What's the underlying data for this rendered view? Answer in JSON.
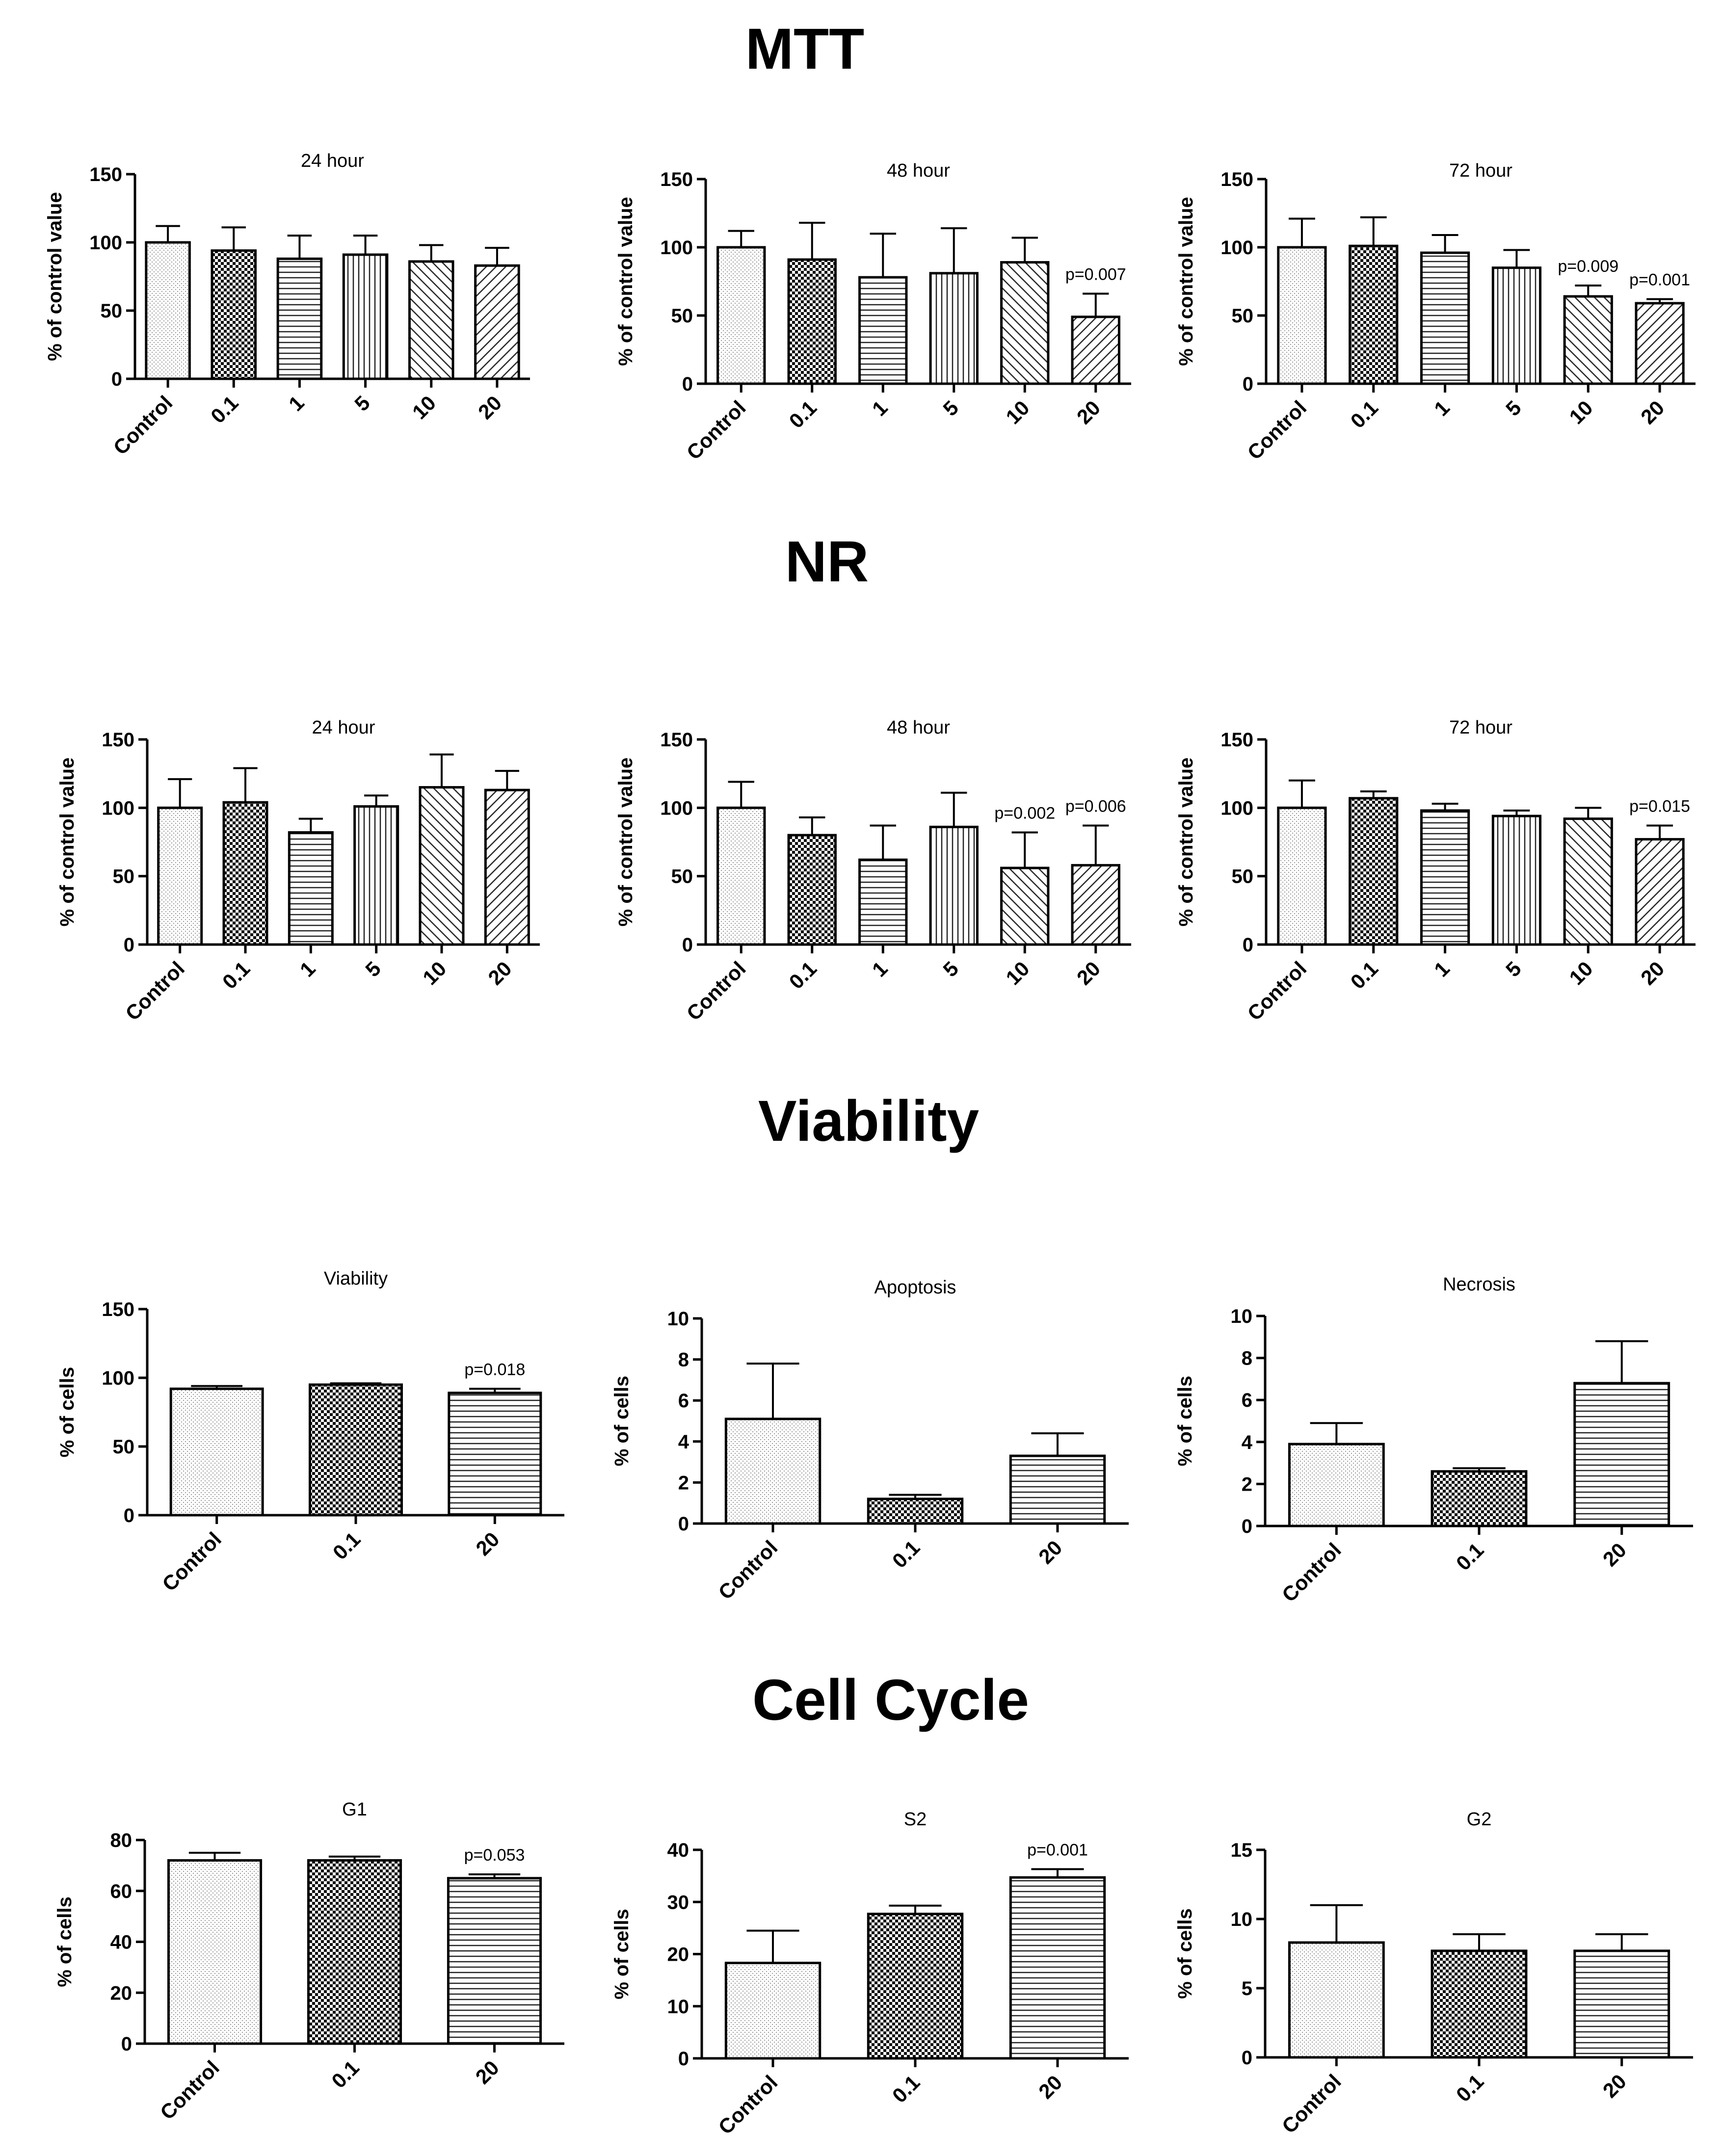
{
  "section_titles": {
    "mtt": "MTT",
    "nr": "NR",
    "viability": "Viability",
    "cell_cycle": "Cell Cycle"
  },
  "chart_data": [
    {
      "id": "mtt-24",
      "type": "bar",
      "title": "24 hour",
      "ylabel": "% of control value",
      "ylim": [
        0,
        150
      ],
      "yticks": [
        0,
        50,
        100,
        150
      ],
      "categories": [
        "Control",
        "0.1",
        "1",
        "5",
        "10",
        "20"
      ],
      "values": [
        100,
        94,
        88,
        91,
        86,
        83
      ],
      "errors": [
        12,
        17,
        17,
        14,
        12,
        13
      ],
      "patterns": [
        "dots",
        "checker",
        "hlines",
        "vlines",
        "diag",
        "diag2"
      ],
      "annotations": [
        "",
        "",
        "",
        "",
        "",
        ""
      ]
    },
    {
      "id": "mtt-48",
      "type": "bar",
      "title": "48 hour",
      "ylabel": "% of control value",
      "ylim": [
        0,
        150
      ],
      "yticks": [
        0,
        50,
        100,
        150
      ],
      "categories": [
        "Control",
        "0.1",
        "1",
        "5",
        "10",
        "20"
      ],
      "values": [
        100,
        91,
        78,
        81,
        89,
        49
      ],
      "errors": [
        12,
        27,
        32,
        33,
        18,
        17
      ],
      "patterns": [
        "dots",
        "checker",
        "hlines",
        "vlines",
        "diag",
        "diag2"
      ],
      "annotations": [
        "",
        "",
        "",
        "",
        "",
        "p=0.007"
      ]
    },
    {
      "id": "mtt-72",
      "type": "bar",
      "title": "72 hour",
      "ylabel": "% of control value",
      "ylim": [
        0,
        150
      ],
      "yticks": [
        0,
        50,
        100,
        150
      ],
      "categories": [
        "Control",
        "0.1",
        "1",
        "5",
        "10",
        "20"
      ],
      "values": [
        100,
        101,
        96,
        85,
        64,
        59
      ],
      "errors": [
        21,
        21,
        13,
        13,
        8,
        3
      ],
      "patterns": [
        "dots",
        "checker",
        "hlines",
        "vlines",
        "diag",
        "diag2"
      ],
      "annotations": [
        "",
        "",
        "",
        "",
        "p=0.009",
        "p=0.001"
      ]
    },
    {
      "id": "nr-24",
      "type": "bar",
      "title": "24 hour",
      "ylabel": "% of control value",
      "ylim": [
        0,
        150
      ],
      "yticks": [
        0,
        50,
        100,
        150
      ],
      "categories": [
        "Control",
        "0.1",
        "1",
        "5",
        "10",
        "20"
      ],
      "values": [
        100,
        104,
        82,
        101,
        115,
        113
      ],
      "errors": [
        21,
        25,
        10,
        8,
        24,
        14
      ],
      "patterns": [
        "dots",
        "checker",
        "hlines",
        "vlines",
        "diag",
        "diag2"
      ],
      "annotations": [
        "",
        "",
        "",
        "",
        "",
        ""
      ]
    },
    {
      "id": "nr-48",
      "type": "bar",
      "title": "48 hour",
      "ylabel": "% of control value",
      "ylim": [
        0,
        150
      ],
      "yticks": [
        0,
        50,
        100,
        150
      ],
      "categories": [
        "Control",
        "0.1",
        "1",
        "5",
        "10",
        "20"
      ],
      "values": [
        100,
        80,
        62,
        86,
        56,
        58
      ],
      "errors": [
        19,
        13,
        25,
        25,
        26,
        29
      ],
      "patterns": [
        "dots",
        "checker",
        "hlines",
        "vlines",
        "diag",
        "diag2"
      ],
      "annotations": [
        "",
        "",
        "",
        "",
        "p=0.002",
        "p=0.006"
      ]
    },
    {
      "id": "nr-72",
      "type": "bar",
      "title": "72 hour",
      "ylabel": "% of control value",
      "ylim": [
        0,
        150
      ],
      "yticks": [
        0,
        50,
        100,
        150
      ],
      "categories": [
        "Control",
        "0.1",
        "1",
        "5",
        "10",
        "20"
      ],
      "values": [
        100,
        107,
        98,
        94,
        92,
        77
      ],
      "errors": [
        20,
        5,
        5,
        4,
        8,
        10
      ],
      "patterns": [
        "dots",
        "checker",
        "hlines",
        "vlines",
        "diag",
        "diag2"
      ],
      "annotations": [
        "",
        "",
        "",
        "",
        "",
        "p=0.015"
      ]
    },
    {
      "id": "viability",
      "type": "bar",
      "title": "Viability",
      "ylabel": "% of cells",
      "ylim": [
        0,
        150
      ],
      "yticks": [
        0,
        50,
        100,
        150
      ],
      "categories": [
        "Control",
        "0.1",
        "20"
      ],
      "values": [
        92,
        95,
        89
      ],
      "errors": [
        2,
        1,
        3
      ],
      "patterns": [
        "dots",
        "checker",
        "hlines"
      ],
      "annotations": [
        "",
        "",
        "p=0.018"
      ]
    },
    {
      "id": "apoptosis",
      "type": "bar",
      "title": "Apoptosis",
      "ylabel": "% of cells",
      "ylim": [
        0,
        10
      ],
      "yticks": [
        0,
        2,
        4,
        6,
        8,
        10
      ],
      "categories": [
        "Control",
        "0.1",
        "20"
      ],
      "values": [
        5.1,
        1.2,
        3.3
      ],
      "errors": [
        2.7,
        0.2,
        1.1
      ],
      "patterns": [
        "dots",
        "checker",
        "hlines"
      ],
      "annotations": [
        "",
        "",
        ""
      ]
    },
    {
      "id": "necrosis",
      "type": "bar",
      "title": "Necrosis",
      "ylabel": "% of cells",
      "ylim": [
        0,
        10
      ],
      "yticks": [
        0,
        2,
        4,
        6,
        8,
        10
      ],
      "categories": [
        "Control",
        "0.1",
        "20"
      ],
      "values": [
        3.9,
        2.6,
        6.8
      ],
      "errors": [
        1.0,
        0.15,
        2.0
      ],
      "patterns": [
        "dots",
        "checker",
        "hlines"
      ],
      "annotations": [
        "",
        "",
        ""
      ]
    },
    {
      "id": "g1",
      "type": "bar",
      "title": "G1",
      "ylabel": "% of cells",
      "ylim": [
        0,
        80
      ],
      "yticks": [
        0,
        20,
        40,
        60,
        80
      ],
      "categories": [
        "Control",
        "0.1",
        "20"
      ],
      "values": [
        72,
        72,
        65
      ],
      "errors": [
        3,
        1.5,
        1.5
      ],
      "patterns": [
        "dots",
        "checker",
        "hlines"
      ],
      "annotations": [
        "",
        "",
        "p=0.053"
      ]
    },
    {
      "id": "s2",
      "type": "bar",
      "title": "S2",
      "ylabel": "% of cells",
      "ylim": [
        0,
        40
      ],
      "yticks": [
        0,
        10,
        20,
        30,
        40
      ],
      "categories": [
        "Control",
        "0.1",
        "20"
      ],
      "values": [
        18.3,
        27.7,
        34.7
      ],
      "errors": [
        6.2,
        1.6,
        1.6
      ],
      "patterns": [
        "dots",
        "checker",
        "hlines"
      ],
      "annotations": [
        "",
        "",
        "p=0.001"
      ]
    },
    {
      "id": "g2",
      "type": "bar",
      "title": "G2",
      "ylabel": "% of cells",
      "ylim": [
        0,
        15
      ],
      "yticks": [
        0,
        5,
        10,
        15
      ],
      "categories": [
        "Control",
        "0.1",
        "20"
      ],
      "values": [
        8.3,
        7.7,
        7.7
      ],
      "errors": [
        2.7,
        1.2,
        1.2
      ],
      "patterns": [
        "dots",
        "checker",
        "hlines"
      ],
      "annotations": [
        "",
        "",
        ""
      ]
    }
  ]
}
